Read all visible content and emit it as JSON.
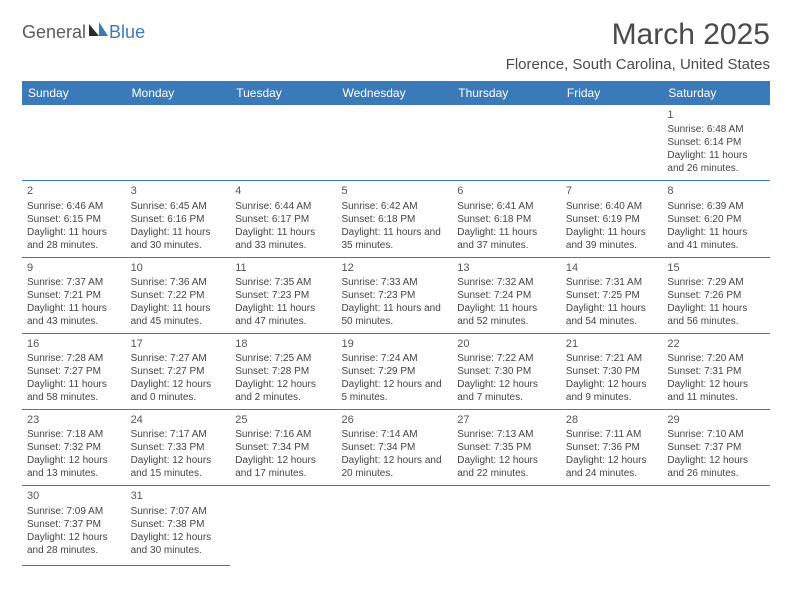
{
  "logo": {
    "text1": "General",
    "text2": "Blue"
  },
  "title": "March 2025",
  "location": "Florence, South Carolina, United States",
  "header_bg": "#3b7ab8",
  "days": [
    "Sunday",
    "Monday",
    "Tuesday",
    "Wednesday",
    "Thursday",
    "Friday",
    "Saturday"
  ],
  "weeks": [
    [
      null,
      null,
      null,
      null,
      null,
      null,
      {
        "n": "1",
        "sunrise": "6:48 AM",
        "sunset": "6:14 PM",
        "daylight": "11 hours and 26 minutes."
      }
    ],
    [
      {
        "n": "2",
        "sunrise": "6:46 AM",
        "sunset": "6:15 PM",
        "daylight": "11 hours and 28 minutes."
      },
      {
        "n": "3",
        "sunrise": "6:45 AM",
        "sunset": "6:16 PM",
        "daylight": "11 hours and 30 minutes."
      },
      {
        "n": "4",
        "sunrise": "6:44 AM",
        "sunset": "6:17 PM",
        "daylight": "11 hours and 33 minutes."
      },
      {
        "n": "5",
        "sunrise": "6:42 AM",
        "sunset": "6:18 PM",
        "daylight": "11 hours and 35 minutes."
      },
      {
        "n": "6",
        "sunrise": "6:41 AM",
        "sunset": "6:18 PM",
        "daylight": "11 hours and 37 minutes."
      },
      {
        "n": "7",
        "sunrise": "6:40 AM",
        "sunset": "6:19 PM",
        "daylight": "11 hours and 39 minutes."
      },
      {
        "n": "8",
        "sunrise": "6:39 AM",
        "sunset": "6:20 PM",
        "daylight": "11 hours and 41 minutes."
      }
    ],
    [
      {
        "n": "9",
        "sunrise": "7:37 AM",
        "sunset": "7:21 PM",
        "daylight": "11 hours and 43 minutes."
      },
      {
        "n": "10",
        "sunrise": "7:36 AM",
        "sunset": "7:22 PM",
        "daylight": "11 hours and 45 minutes."
      },
      {
        "n": "11",
        "sunrise": "7:35 AM",
        "sunset": "7:23 PM",
        "daylight": "11 hours and 47 minutes."
      },
      {
        "n": "12",
        "sunrise": "7:33 AM",
        "sunset": "7:23 PM",
        "daylight": "11 hours and 50 minutes."
      },
      {
        "n": "13",
        "sunrise": "7:32 AM",
        "sunset": "7:24 PM",
        "daylight": "11 hours and 52 minutes."
      },
      {
        "n": "14",
        "sunrise": "7:31 AM",
        "sunset": "7:25 PM",
        "daylight": "11 hours and 54 minutes."
      },
      {
        "n": "15",
        "sunrise": "7:29 AM",
        "sunset": "7:26 PM",
        "daylight": "11 hours and 56 minutes."
      }
    ],
    [
      {
        "n": "16",
        "sunrise": "7:28 AM",
        "sunset": "7:27 PM",
        "daylight": "11 hours and 58 minutes."
      },
      {
        "n": "17",
        "sunrise": "7:27 AM",
        "sunset": "7:27 PM",
        "daylight": "12 hours and 0 minutes."
      },
      {
        "n": "18",
        "sunrise": "7:25 AM",
        "sunset": "7:28 PM",
        "daylight": "12 hours and 2 minutes."
      },
      {
        "n": "19",
        "sunrise": "7:24 AM",
        "sunset": "7:29 PM",
        "daylight": "12 hours and 5 minutes."
      },
      {
        "n": "20",
        "sunrise": "7:22 AM",
        "sunset": "7:30 PM",
        "daylight": "12 hours and 7 minutes."
      },
      {
        "n": "21",
        "sunrise": "7:21 AM",
        "sunset": "7:30 PM",
        "daylight": "12 hours and 9 minutes."
      },
      {
        "n": "22",
        "sunrise": "7:20 AM",
        "sunset": "7:31 PM",
        "daylight": "12 hours and 11 minutes."
      }
    ],
    [
      {
        "n": "23",
        "sunrise": "7:18 AM",
        "sunset": "7:32 PM",
        "daylight": "12 hours and 13 minutes."
      },
      {
        "n": "24",
        "sunrise": "7:17 AM",
        "sunset": "7:33 PM",
        "daylight": "12 hours and 15 minutes."
      },
      {
        "n": "25",
        "sunrise": "7:16 AM",
        "sunset": "7:34 PM",
        "daylight": "12 hours and 17 minutes."
      },
      {
        "n": "26",
        "sunrise": "7:14 AM",
        "sunset": "7:34 PM",
        "daylight": "12 hours and 20 minutes."
      },
      {
        "n": "27",
        "sunrise": "7:13 AM",
        "sunset": "7:35 PM",
        "daylight": "12 hours and 22 minutes."
      },
      {
        "n": "28",
        "sunrise": "7:11 AM",
        "sunset": "7:36 PM",
        "daylight": "12 hours and 24 minutes."
      },
      {
        "n": "29",
        "sunrise": "7:10 AM",
        "sunset": "7:37 PM",
        "daylight": "12 hours and 26 minutes."
      }
    ],
    [
      {
        "n": "30",
        "sunrise": "7:09 AM",
        "sunset": "7:37 PM",
        "daylight": "12 hours and 28 minutes."
      },
      {
        "n": "31",
        "sunrise": "7:07 AM",
        "sunset": "7:38 PM",
        "daylight": "12 hours and 30 minutes."
      },
      null,
      null,
      null,
      null,
      null
    ]
  ],
  "labels": {
    "sunrise": "Sunrise: ",
    "sunset": "Sunset: ",
    "daylight": "Daylight: "
  }
}
